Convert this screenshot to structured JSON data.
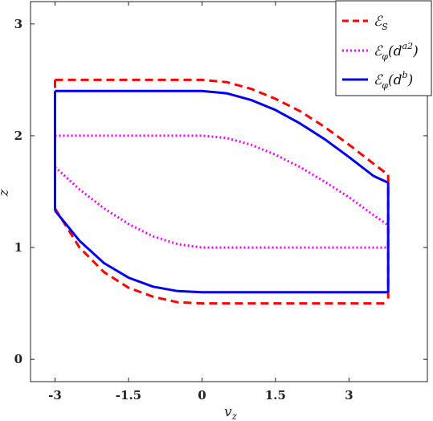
{
  "chart_data": {
    "type": "line",
    "xlabel": "v_z",
    "ylabel": "z",
    "xlim": [
      -3.5,
      4.6
    ],
    "ylim": [
      -0.2,
      3.2
    ],
    "xticks": [
      -3,
      -1.5,
      0,
      1.5,
      3
    ],
    "xtick_labels": [
      "-3",
      "-1.5",
      "0",
      "1.5",
      "3"
    ],
    "yticks": [
      0,
      1,
      2,
      3
    ],
    "ytick_labels": [
      "0",
      "1",
      "2",
      "3"
    ],
    "grid": false,
    "legend_position": "top-right",
    "series": [
      {
        "name": "ℰ_S",
        "color": "#ff0000",
        "style": "dashed",
        "top": [
          [
            -3,
            2.5
          ],
          [
            0,
            2.5
          ],
          [
            0.5,
            2.48
          ],
          [
            1,
            2.42
          ],
          [
            1.5,
            2.33
          ],
          [
            2,
            2.22
          ],
          [
            2.5,
            2.08
          ],
          [
            3,
            1.92
          ],
          [
            3.5,
            1.75
          ],
          [
            3.8,
            1.65
          ]
        ],
        "bottom": [
          [
            -3,
            1.35
          ],
          [
            -2.5,
            1.0
          ],
          [
            -2,
            0.78
          ],
          [
            -1.5,
            0.64
          ],
          [
            -1,
            0.56
          ],
          [
            -0.5,
            0.51
          ],
          [
            0,
            0.5
          ],
          [
            3.8,
            0.5
          ]
        ],
        "left_x": -3,
        "right_x": 3.8
      },
      {
        "name": "ℰ_φ(d^a2)",
        "color": "#ff00ff",
        "style": "dotted",
        "top": [
          [
            -3,
            2.0
          ],
          [
            0,
            2.0
          ],
          [
            0.5,
            1.98
          ],
          [
            1,
            1.92
          ],
          [
            1.5,
            1.83
          ],
          [
            2,
            1.72
          ],
          [
            2.5,
            1.59
          ],
          [
            3,
            1.45
          ],
          [
            3.5,
            1.29
          ],
          [
            3.8,
            1.2
          ]
        ],
        "bottom": [
          [
            -3,
            1.72
          ],
          [
            -2.5,
            1.52
          ],
          [
            -2,
            1.35
          ],
          [
            -1.5,
            1.21
          ],
          [
            -1,
            1.1
          ],
          [
            -0.5,
            1.03
          ],
          [
            0,
            1.0
          ],
          [
            3.8,
            1.0
          ]
        ],
        "left_x": null,
        "right_x": null
      },
      {
        "name": "ℰ_φ(d^b)",
        "color": "#0000ee",
        "style": "solid",
        "top": [
          [
            -3,
            2.4
          ],
          [
            0,
            2.4
          ],
          [
            0.5,
            2.38
          ],
          [
            1,
            2.32
          ],
          [
            1.5,
            2.23
          ],
          [
            2,
            2.11
          ],
          [
            2.5,
            1.97
          ],
          [
            3,
            1.81
          ],
          [
            3.5,
            1.64
          ],
          [
            3.8,
            1.58
          ]
        ],
        "bottom": [
          [
            -3,
            1.33
          ],
          [
            -2.5,
            1.06
          ],
          [
            -2,
            0.86
          ],
          [
            -1.5,
            0.73
          ],
          [
            -1,
            0.65
          ],
          [
            -0.5,
            0.61
          ],
          [
            0,
            0.6
          ],
          [
            3.8,
            0.6
          ]
        ],
        "left_x": -3,
        "right_x": 3.8
      }
    ]
  },
  "legend": {
    "items": [
      {
        "main": "ℰ",
        "sub": "S",
        "sup": ""
      },
      {
        "main": "ℰ",
        "sub": "φ",
        "arg_base": "d",
        "sup": "a2"
      },
      {
        "main": "ℰ",
        "sub": "φ",
        "arg_base": "d",
        "sup": "b"
      }
    ]
  }
}
